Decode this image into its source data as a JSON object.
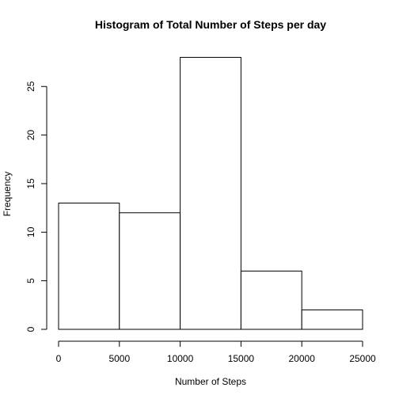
{
  "chart_data": {
    "type": "bar",
    "subtype": "histogram",
    "title": "Histogram of Total Number of Steps per day",
    "xlabel": "Number of Steps",
    "ylabel": "Frequency",
    "bins": [
      {
        "start": 0,
        "end": 5000,
        "count": 13
      },
      {
        "start": 5000,
        "end": 10000,
        "count": 12
      },
      {
        "start": 10000,
        "end": 15000,
        "count": 28
      },
      {
        "start": 15000,
        "end": 20000,
        "count": 6
      },
      {
        "start": 20000,
        "end": 25000,
        "count": 2
      }
    ],
    "xticks": [
      0,
      5000,
      10000,
      15000,
      20000,
      25000
    ],
    "yticks": [
      0,
      5,
      10,
      15,
      20,
      25
    ],
    "xlim": [
      0,
      25000
    ],
    "ylim": [
      0,
      28
    ],
    "grid": false,
    "colors": {
      "bar_fill": "#ffffff",
      "bar_stroke": "#000000",
      "axis": "#000000"
    }
  }
}
